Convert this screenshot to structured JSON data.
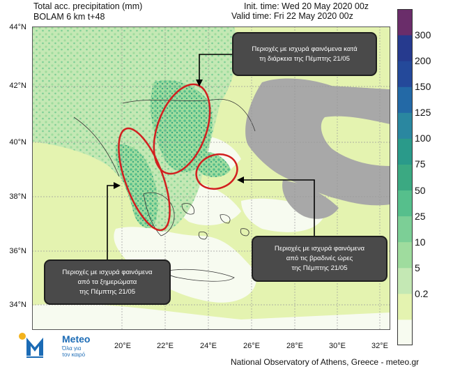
{
  "header": {
    "title_line1": "Total acc. precipitation (mm)",
    "title_line2": "BOLAM 6 km t+48",
    "init_time": "Init. time: Wed 20 May 2020 00z",
    "valid_time": "Valid time: Fri 22 May 2020 00z"
  },
  "axes": {
    "lat_labels": [
      "44°N",
      "42°N",
      "40°N",
      "38°N",
      "36°N",
      "34°N"
    ],
    "lon_labels": [
      "20°E",
      "22°E",
      "24°E",
      "26°E",
      "28°E",
      "30°E",
      "32°E"
    ]
  },
  "colorbar": {
    "labels": [
      "300",
      "200",
      "150",
      "125",
      "100",
      "75",
      "50",
      "25",
      "10",
      "5",
      "0.2"
    ],
    "colors": [
      "#f7fbf0",
      "#e4f3b0",
      "#c4e8b4",
      "#9fdc9e",
      "#7ccf96",
      "#56bf8c",
      "#3ba982",
      "#2a9a8a",
      "#2a87a0",
      "#2369a6",
      "#24499a",
      "#263a8e",
      "#6a2d6a"
    ]
  },
  "callouts": {
    "north": [
      "Περιοχές με ισχυρά φαινόμενα  κατά",
      "τη διάρκεια  της Πέμπτης 21/05"
    ],
    "west": [
      "Περιοχές με ισχυρά φαινόμενα",
      "από τα ξημερώματα",
      "της Πέμπτης 21/05"
    ],
    "east": [
      "Περιοχές με ισχυρά φαινόμενα",
      "από τις βραδινές ώρες",
      "της Πέμπτης 21/05"
    ]
  },
  "logo": {
    "name": "Meteo",
    "tagline_1": "Όλα για",
    "tagline_2": "τον καιρό"
  },
  "footer": {
    "credit": "National Observatory of Athens, Greece - meteo.gr"
  }
}
